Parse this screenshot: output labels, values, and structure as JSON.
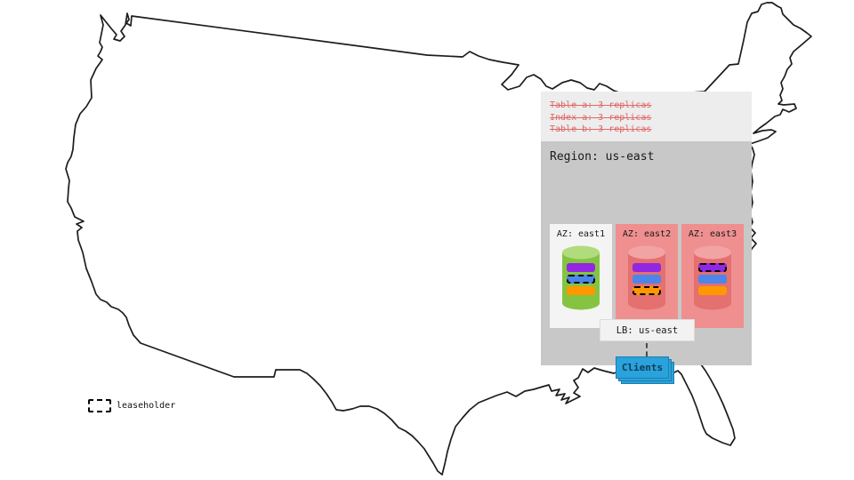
{
  "legend": {
    "label": "leaseholder"
  },
  "panel": {
    "annotations": [
      {
        "text": "Table a: 3 replicas",
        "struck": true
      },
      {
        "text": "Index a: 3 replicas",
        "struck": true
      },
      {
        "text": "Table b: 3 replicas",
        "struck": true
      }
    ],
    "region": {
      "label": "Region: us-east"
    },
    "zones": [
      {
        "label": "AZ: east1",
        "style": "light",
        "cylinder": "green",
        "replicas": [
          {
            "color": "purple",
            "leaseholder": false
          },
          {
            "color": "blue",
            "leaseholder": true
          },
          {
            "color": "orange",
            "leaseholder": false
          }
        ]
      },
      {
        "label": "AZ: east2",
        "style": "salmon",
        "cylinder": "salmon",
        "replicas": [
          {
            "color": "purple",
            "leaseholder": false
          },
          {
            "color": "blue",
            "leaseholder": false
          },
          {
            "color": "orange",
            "leaseholder": true
          }
        ]
      },
      {
        "label": "AZ: east3",
        "style": "salmon",
        "cylinder": "salmon",
        "replicas": [
          {
            "color": "purple",
            "leaseholder": true
          },
          {
            "color": "blue",
            "leaseholder": false
          },
          {
            "color": "orange",
            "leaseholder": false
          }
        ]
      }
    ],
    "lb": {
      "label": "LB: us-east"
    },
    "clients": {
      "label": "Clients"
    }
  },
  "colors": {
    "purple": "#9326e3",
    "blue": "#4d86e8",
    "orange": "#ff9800",
    "annotation_red": "#e06666",
    "green_cylinder": "#85c441",
    "green_cylinder_top": "#b1dc7e",
    "salmon_cylinder": "#e57070",
    "salmon_cylinder_top": "#f2a4a4",
    "zone_salmon_bg": "#ef8f8f",
    "clients_blue": "#2aa2dc"
  }
}
